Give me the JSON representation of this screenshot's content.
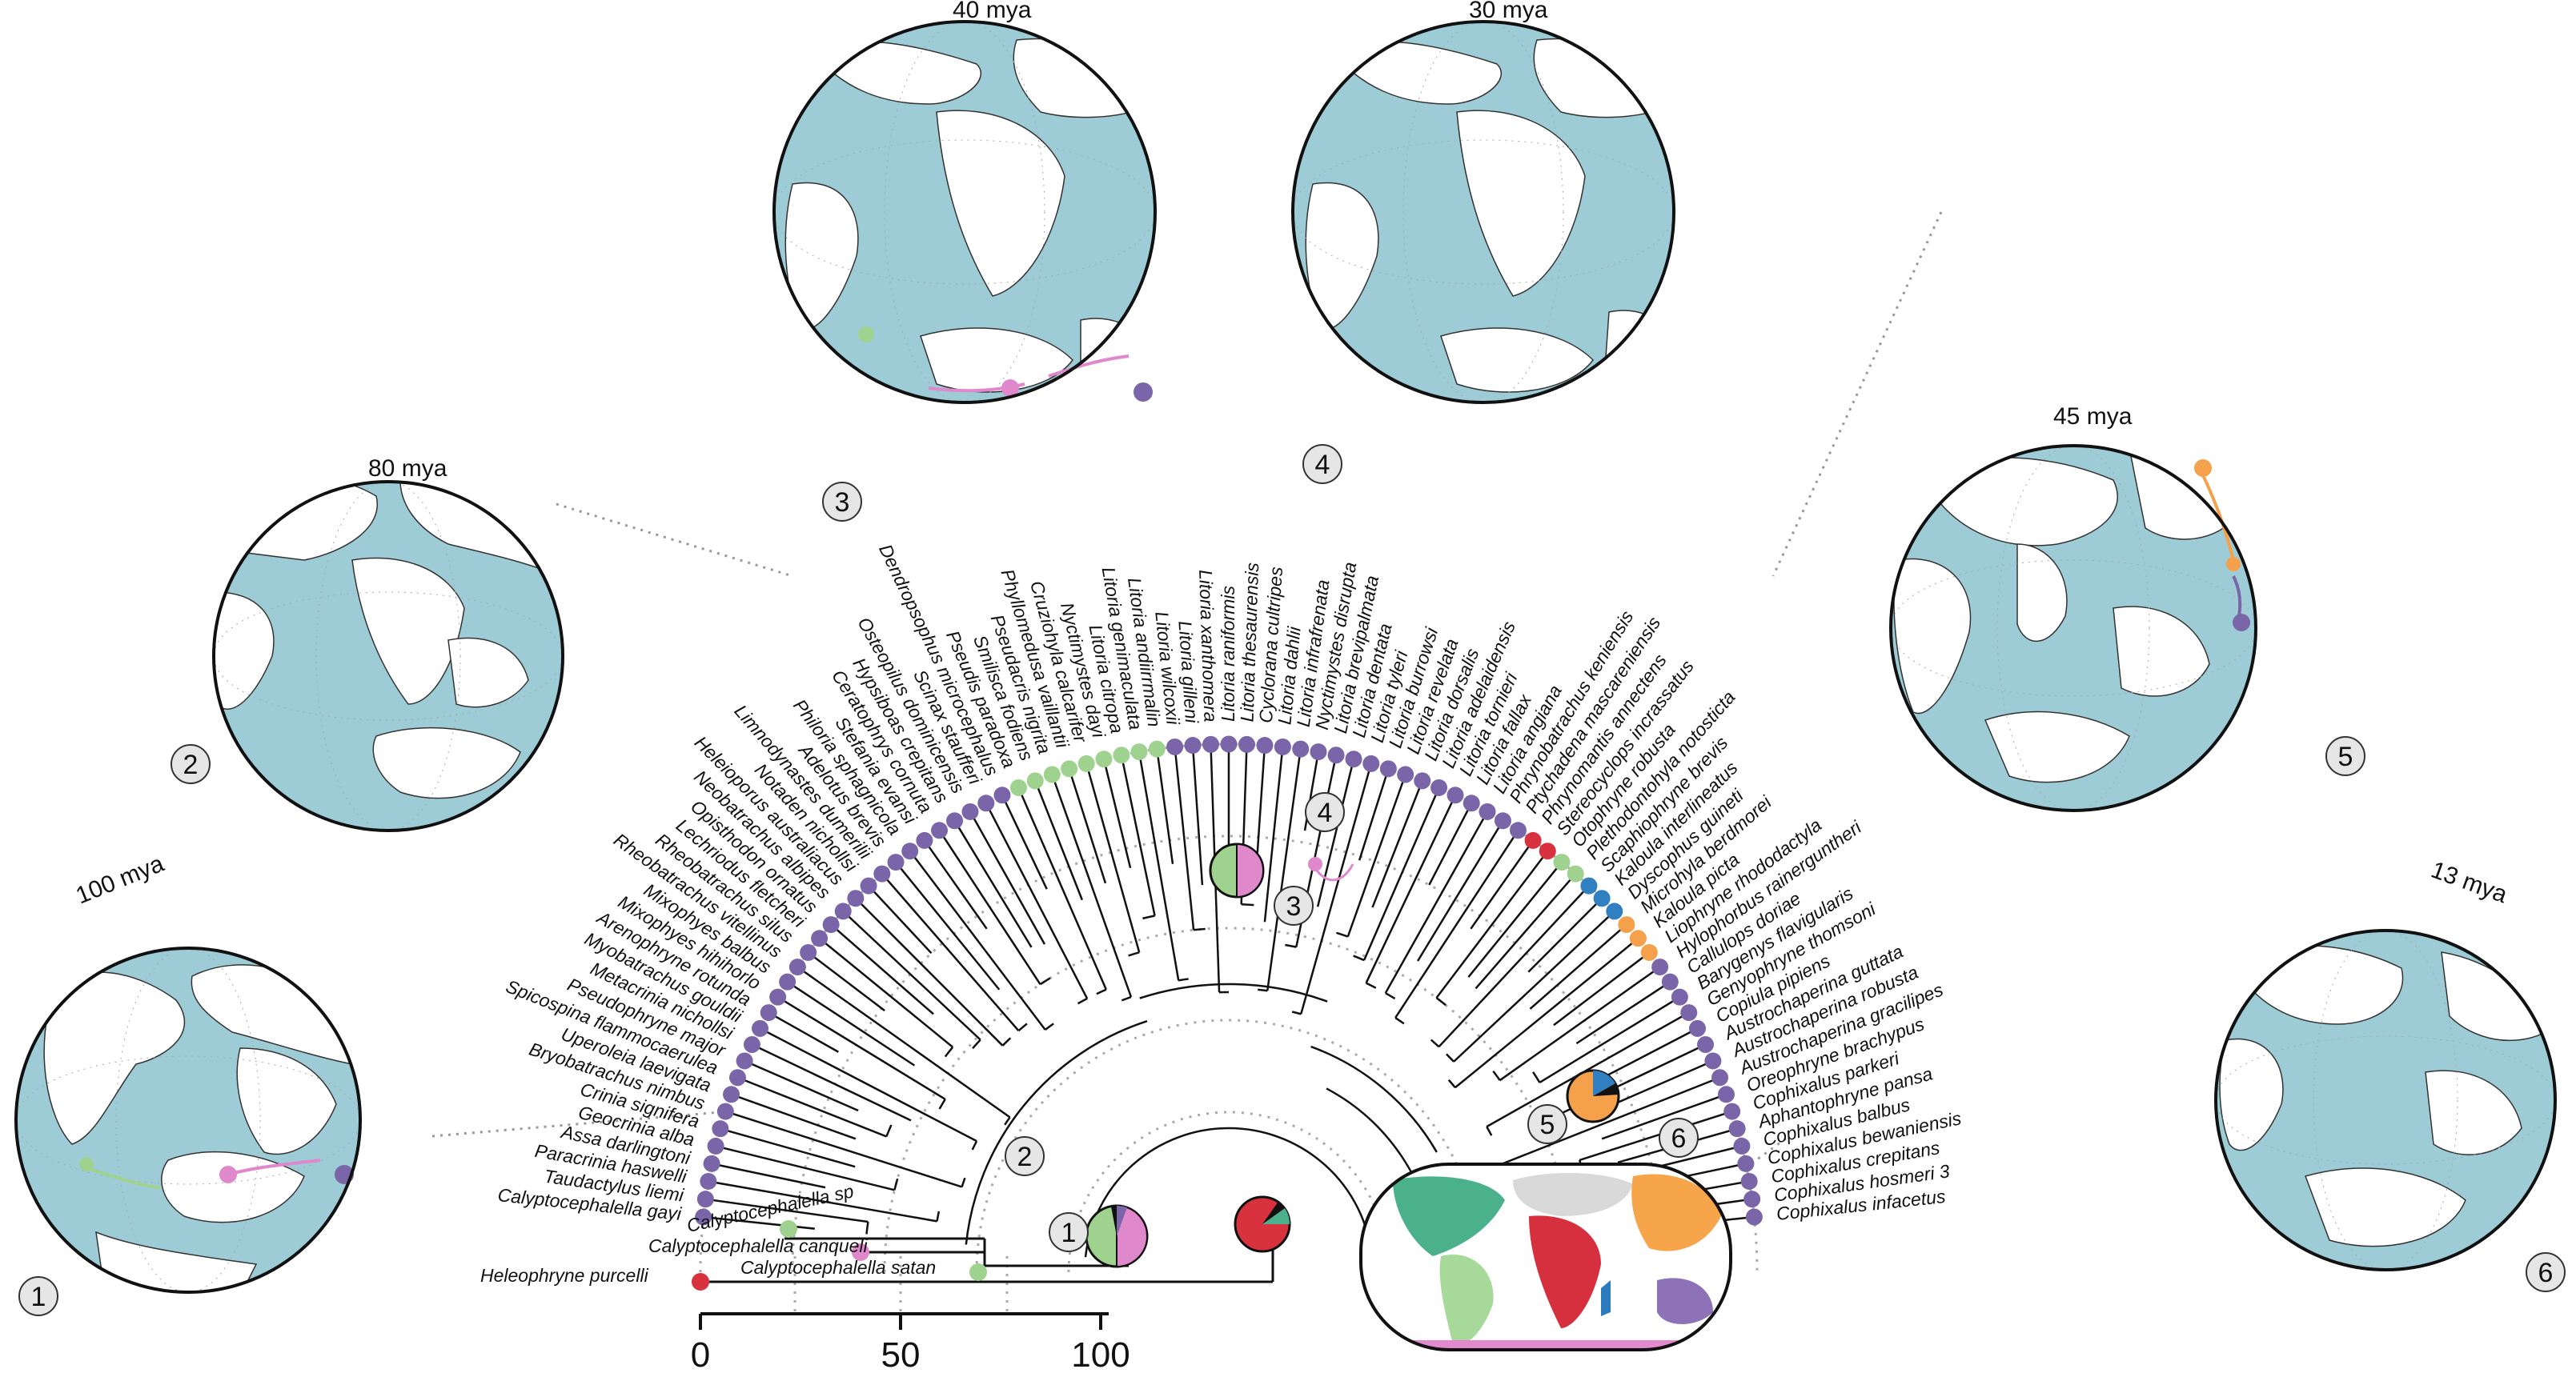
{
  "globes": [
    {
      "id": "1",
      "age_label": "100 mya",
      "number": "1"
    },
    {
      "id": "2",
      "age_label": "80 mya",
      "number": "2"
    },
    {
      "id": "3",
      "age_label": "40 mya",
      "number": "3"
    },
    {
      "id": "4",
      "age_label": "30 mya",
      "number": "4"
    },
    {
      "id": "5",
      "age_label": "45 mya",
      "number": "5"
    },
    {
      "id": "6",
      "age_label": "13 mya",
      "number": "6"
    }
  ],
  "tree_nodes": [
    "1",
    "2",
    "3",
    "4",
    "5",
    "6"
  ],
  "axis": {
    "ticks": [
      "0",
      "50",
      "100"
    ]
  },
  "outgroup": "Heleophryne purcelli",
  "species": [
    "Calyptocephalella satan",
    "Calyptocephalella sp",
    "Calyptocephalella canqueli",
    "Calyptocephalella gayi",
    "Taudactylus liemi",
    "Paracrinia haswelli",
    "Assa darlingtoni",
    "Geocrinia alba",
    "Crinia signifera",
    "Bryobatrachus nimbus",
    "Uperoleia laevigata",
    "Spicospina flammocaerulea",
    "Pseudophryne major",
    "Metacrinia nichollsi",
    "Myobatrachus gouldii",
    "Arenophryne rotunda",
    "Mixophyes hihihorlo",
    "Mixophyes balbus",
    "Rheobatrachus vitellinus",
    "Rheobatrachus silus",
    "Lechriodus fletcheri",
    "Opisthodon ornatus",
    "Neobatrachus albipes",
    "Heleioporus australiacus",
    "Notaden nichollsi",
    "Limnodynastes dumerilii",
    "Adelotus brevis",
    "Philoria sphagnicola",
    "Stefania evansi",
    "Ceratophrys cornuta",
    "Hypsiboas crepitans",
    "Osteopilus dominicensis",
    "Scinax staufferi",
    "Dendropsophus microcephalus",
    "Pseudis paradoxa",
    "Smilisca fodiens",
    "Pseudacris nigrita",
    "Phyllomedusa vaillantii",
    "Cruziohyla calcarifer",
    "Nyctimystes dayi",
    "Litoria citropa",
    "Litoria genimaculata",
    "Litoria andiirrmalin",
    "Litoria wilcoxii",
    "Litoria gilleni",
    "Litoria xanthomera",
    "Litoria raniformis",
    "Litoria thesaurensis",
    "Cyclorana cultripes",
    "Litoria dahlii",
    "Litoria infrafrenata",
    "Nyctimystes disrupta",
    "Litoria brevipalmata",
    "Litoria dentata",
    "Litoria tyleri",
    "Litoria burrowsi",
    "Litoria revelata",
    "Litoria dorsalis",
    "Litoria adelaidensis",
    "Litoria tornieri",
    "Litoria fallax",
    "Litoria angiana",
    "Phrynobatrachus keniensis",
    "Ptychadena mascareniensis",
    "Phrynomantis annectens",
    "Stereocyclops incrassatus",
    "Otophryne robusta",
    "Plethodontohyla notosticta",
    "Scaphiophryne brevis",
    "Kaloula interlineatus",
    "Dyscophus guineti",
    "Microhyla berdmorei",
    "Kaloula picta",
    "Liophryne rhododactyla",
    "Hylophorbus rainerguntheri",
    "Callulops doriae",
    "Barygenys flavigularis",
    "Genyophryne thomsoni",
    "Copiula pipiens",
    "Austrochaperina guttata",
    "Austrochaperina robusta",
    "Austrochaperina gracilipes",
    "Oreophryne brachypus",
    "Cophixalus parkeri",
    "Aphantophryne pansa",
    "Cophixalus balbus",
    "Cophixalus bewaniensis",
    "Cophixalus crepitans",
    "Cophixalus hosmeri 3",
    "Cophixalus infacetus"
  ],
  "tip_colors": {
    "purple": "#7a65a8",
    "green": "#9fd28f",
    "pink": "#e088cc",
    "red": "#d7323d",
    "blue": "#2f7fc1",
    "orange": "#f5a04a"
  },
  "map_colors": {
    "ocean": "#9dccd6",
    "land": "#ffffff",
    "north_america": "#4bb08c",
    "south_america": "#a7d99a",
    "africa": "#d6303e",
    "eurasia": "#d9d9d9",
    "south_asia": "#f7a54b",
    "australia": "#8e72b8",
    "antarctica": "#e389cd",
    "madagascar": "#2c7bbf"
  }
}
